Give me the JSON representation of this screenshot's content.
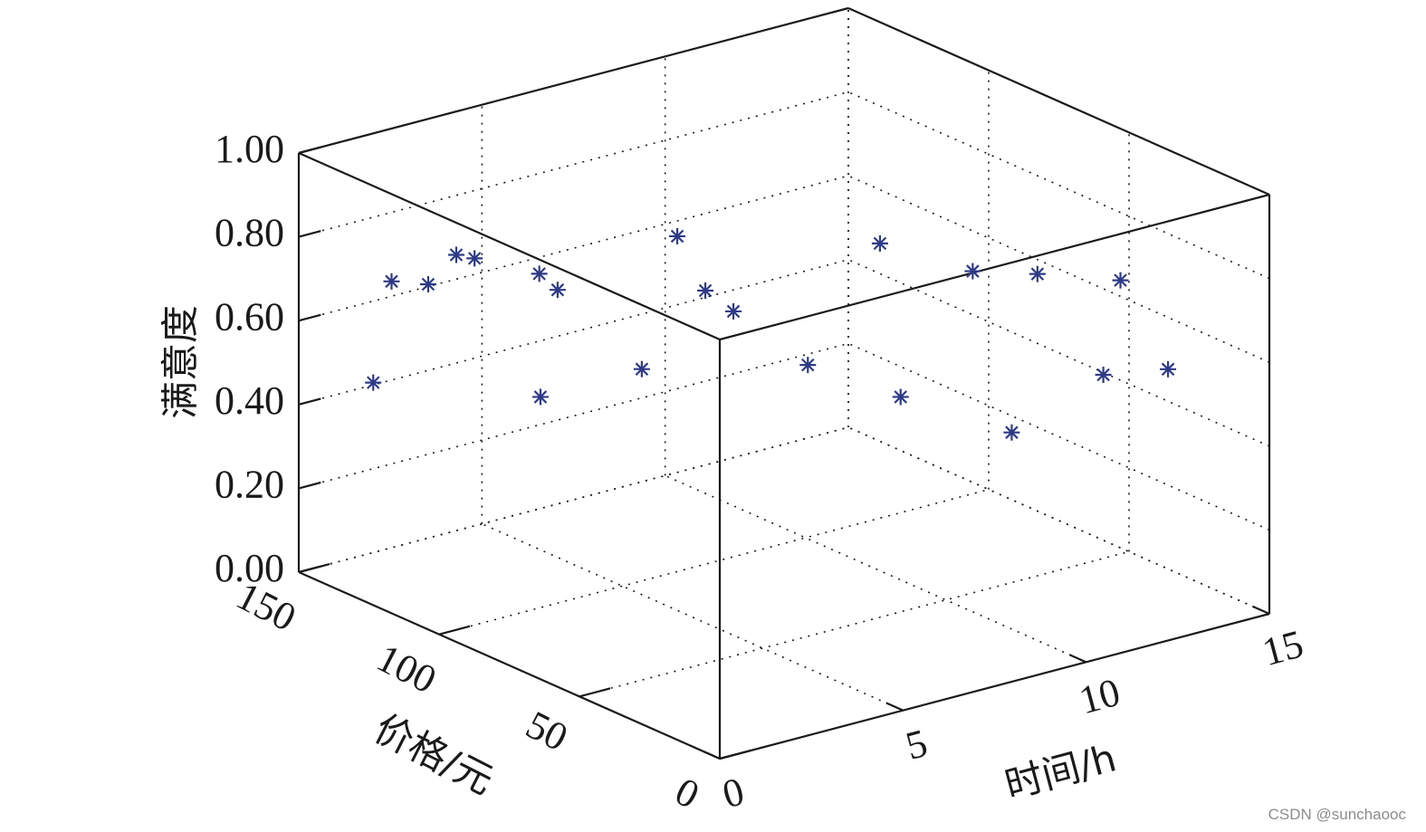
{
  "chart_data": {
    "type": "scatter",
    "projection": "3d",
    "title": "",
    "xlabel": "时间/h",
    "ylabel": "价格/元",
    "zlabel": "满意度",
    "xlim": [
      0,
      15
    ],
    "ylim": [
      0,
      150
    ],
    "zlim": [
      0,
      1
    ],
    "xticks": [
      "0",
      "5",
      "10",
      "15"
    ],
    "yticks": [
      "0",
      "50",
      "100",
      "150"
    ],
    "zticks": [
      "0.00",
      "0.20",
      "0.40",
      "0.60",
      "0.80",
      "1.00"
    ],
    "grid": true,
    "legend": false,
    "marker": "asterisk",
    "marker_color": "#2e3a87",
    "points": [
      {
        "x": 2.0,
        "y": 120,
        "z": 0.8
      },
      {
        "x": 2.5,
        "y": 120,
        "z": 0.78
      },
      {
        "x": 1.0,
        "y": 130,
        "z": 0.73
      },
      {
        "x": 2.0,
        "y": 130,
        "z": 0.7
      },
      {
        "x": 3.5,
        "y": 110,
        "z": 0.75
      },
      {
        "x": 4.0,
        "y": 110,
        "z": 0.7
      },
      {
        "x": 6.5,
        "y": 100,
        "z": 0.8
      },
      {
        "x": 6.5,
        "y": 90,
        "z": 0.7
      },
      {
        "x": 6.5,
        "y": 80,
        "z": 0.68
      },
      {
        "x": 4.0,
        "y": 80,
        "z": 0.6
      },
      {
        "x": 10.5,
        "y": 80,
        "z": 0.75
      },
      {
        "x": 11.5,
        "y": 60,
        "z": 0.72
      },
      {
        "x": 12.5,
        "y": 50,
        "z": 0.72
      },
      {
        "x": 14.0,
        "y": 40,
        "z": 0.7
      },
      {
        "x": 0.5,
        "y": 130,
        "z": 0.5
      },
      {
        "x": 2.0,
        "y": 90,
        "z": 0.55
      },
      {
        "x": 7.0,
        "y": 60,
        "z": 0.6
      },
      {
        "x": 8.0,
        "y": 40,
        "z": 0.56
      },
      {
        "x": 12.0,
        "y": 20,
        "z": 0.58
      },
      {
        "x": 9.5,
        "y": 20,
        "z": 0.5
      },
      {
        "x": 13.0,
        "y": 10,
        "z": 0.6
      }
    ]
  },
  "watermark": "CSDN @sunchaooc"
}
